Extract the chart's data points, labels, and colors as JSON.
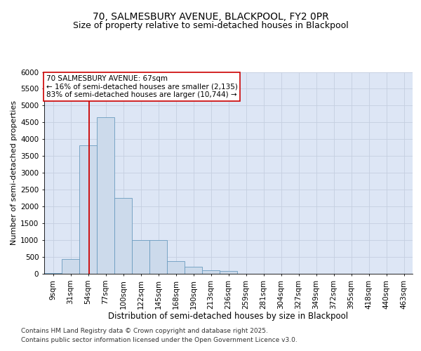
{
  "title1": "70, SALMESBURY AVENUE, BLACKPOOL, FY2 0PR",
  "title2": "Size of property relative to semi-detached houses in Blackpool",
  "xlabel": "Distribution of semi-detached houses by size in Blackpool",
  "ylabel": "Number of semi-detached properties",
  "categories": [
    "9sqm",
    "31sqm",
    "54sqm",
    "77sqm",
    "100sqm",
    "122sqm",
    "145sqm",
    "168sqm",
    "190sqm",
    "213sqm",
    "236sqm",
    "259sqm",
    "281sqm",
    "304sqm",
    "327sqm",
    "349sqm",
    "372sqm",
    "395sqm",
    "418sqm",
    "440sqm",
    "463sqm"
  ],
  "bar_values": [
    30,
    430,
    3820,
    4650,
    2250,
    1000,
    1000,
    380,
    200,
    100,
    90,
    0,
    0,
    0,
    0,
    0,
    0,
    0,
    0,
    0,
    0
  ],
  "bar_color": "#ccdaeb",
  "bar_edge_color": "#6a9bbf",
  "grid_color": "#c5cfe0",
  "background_color": "#dde6f5",
  "property_label": "70 SALMESBURY AVENUE: 67sqm",
  "smaller_text": "← 16% of semi-detached houses are smaller (2,135)",
  "larger_text": "83% of semi-detached houses are larger (10,744) →",
  "annotation_box_color": "#ffffff",
  "annotation_box_edge": "#cc0000",
  "ylim": [
    0,
    6000
  ],
  "yticks": [
    0,
    500,
    1000,
    1500,
    2000,
    2500,
    3000,
    3500,
    4000,
    4500,
    5000,
    5500,
    6000
  ],
  "footnote1": "Contains HM Land Registry data © Crown copyright and database right 2025.",
  "footnote2": "Contains public sector information licensed under the Open Government Licence v3.0.",
  "title1_fontsize": 10,
  "title2_fontsize": 9,
  "xlabel_fontsize": 8.5,
  "ylabel_fontsize": 8,
  "tick_fontsize": 7.5,
  "annotation_fontsize": 7.5,
  "footnote_fontsize": 6.5
}
